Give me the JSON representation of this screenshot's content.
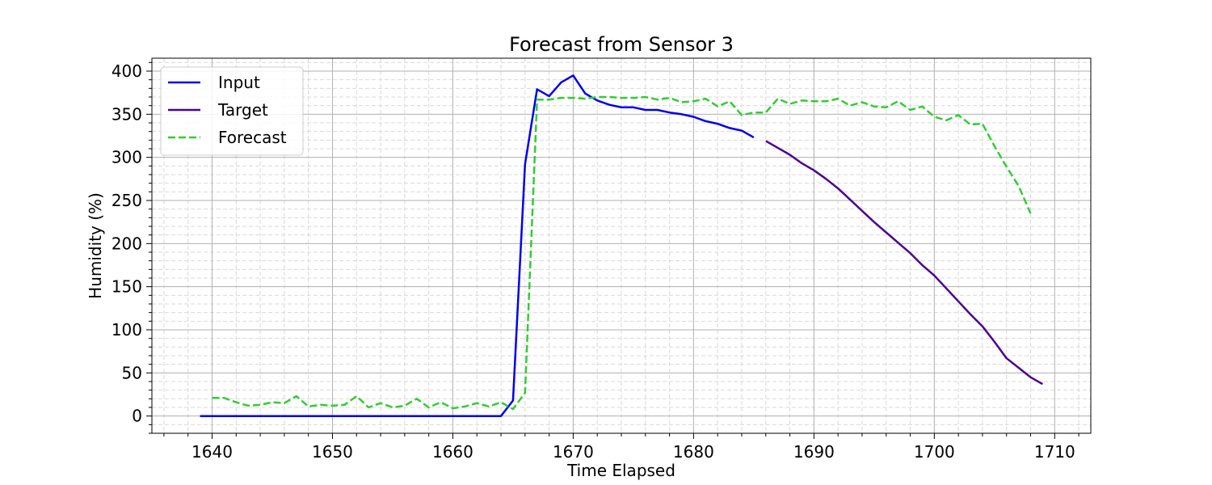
{
  "chart_data": {
    "type": "line",
    "title": "Forecast from Sensor 3",
    "xlabel": "Time Elapsed",
    "ylabel": "Humidity (%)",
    "xlim": [
      1635,
      1713
    ],
    "ylim": [
      -20,
      415
    ],
    "xticks": [
      1640,
      1650,
      1660,
      1670,
      1680,
      1690,
      1700,
      1710
    ],
    "yticks": [
      0,
      50,
      100,
      150,
      200,
      250,
      300,
      350,
      400
    ],
    "grid": true,
    "minor_grid": true,
    "legend": "top-left",
    "series": [
      {
        "name": "Input",
        "color": "#0000ee",
        "style": "solid",
        "x": [
          1639,
          1640,
          1641,
          1642,
          1643,
          1644,
          1645,
          1646,
          1647,
          1648,
          1649,
          1650,
          1651,
          1652,
          1653,
          1654,
          1655,
          1656,
          1657,
          1658,
          1659,
          1660,
          1661,
          1662,
          1663,
          1664,
          1665,
          1666,
          1667,
          1668,
          1669,
          1670,
          1671,
          1672,
          1673,
          1674,
          1675,
          1676,
          1677,
          1678,
          1679,
          1680,
          1681,
          1682,
          1683,
          1684,
          1685
        ],
        "y": [
          0,
          0,
          0,
          0,
          0,
          0,
          0,
          0,
          0,
          0,
          0,
          0,
          0,
          0,
          0,
          0,
          0,
          0,
          0,
          0,
          0,
          0,
          0,
          0,
          0,
          0,
          18,
          292,
          379,
          371,
          387,
          395,
          374,
          366,
          361,
          358,
          358,
          355,
          355,
          352,
          350,
          347,
          342,
          339,
          334,
          331,
          323
        ]
      },
      {
        "name": "Target",
        "color": "#4b0092",
        "style": "solid",
        "x": [
          1686,
          1687,
          1688,
          1689,
          1690,
          1691,
          1692,
          1693,
          1694,
          1695,
          1696,
          1697,
          1698,
          1699,
          1700,
          1701,
          1702,
          1703,
          1704,
          1705,
          1706,
          1707,
          1708,
          1709
        ],
        "y": [
          319,
          311,
          303,
          293,
          285,
          275,
          264,
          251,
          238,
          225,
          213,
          201,
          189,
          175,
          163,
          148,
          133,
          118,
          104,
          86,
          67,
          56,
          45,
          37
        ]
      },
      {
        "name": "Forecast",
        "color": "#33cc33",
        "style": "dashed",
        "x": [
          1640,
          1641,
          1642,
          1643,
          1644,
          1645,
          1646,
          1647,
          1648,
          1649,
          1650,
          1651,
          1652,
          1653,
          1654,
          1655,
          1656,
          1657,
          1658,
          1659,
          1660,
          1661,
          1662,
          1663,
          1664,
          1665,
          1666,
          1667,
          1668,
          1669,
          1670,
          1671,
          1672,
          1673,
          1674,
          1675,
          1676,
          1677,
          1678,
          1679,
          1680,
          1681,
          1682,
          1683,
          1684,
          1685,
          1686,
          1687,
          1688,
          1689,
          1690,
          1691,
          1692,
          1693,
          1694,
          1695,
          1696,
          1697,
          1698,
          1699,
          1700,
          1701,
          1702,
          1703,
          1704,
          1705,
          1706,
          1707,
          1708
        ],
        "y": [
          21,
          21,
          16,
          12,
          13,
          16,
          15,
          23,
          11,
          13,
          12,
          13,
          23,
          10,
          15,
          10,
          12,
          20,
          10,
          16,
          9,
          11,
          15,
          11,
          16,
          8,
          27,
          367,
          367,
          369,
          369,
          368,
          370,
          370,
          369,
          369,
          370,
          367,
          369,
          364,
          365,
          368,
          359,
          365,
          349,
          352,
          352,
          368,
          362,
          366,
          365,
          365,
          368,
          360,
          364,
          359,
          358,
          365,
          355,
          359,
          347,
          343,
          349,
          338,
          339,
          313,
          289,
          267,
          235
        ]
      }
    ]
  }
}
